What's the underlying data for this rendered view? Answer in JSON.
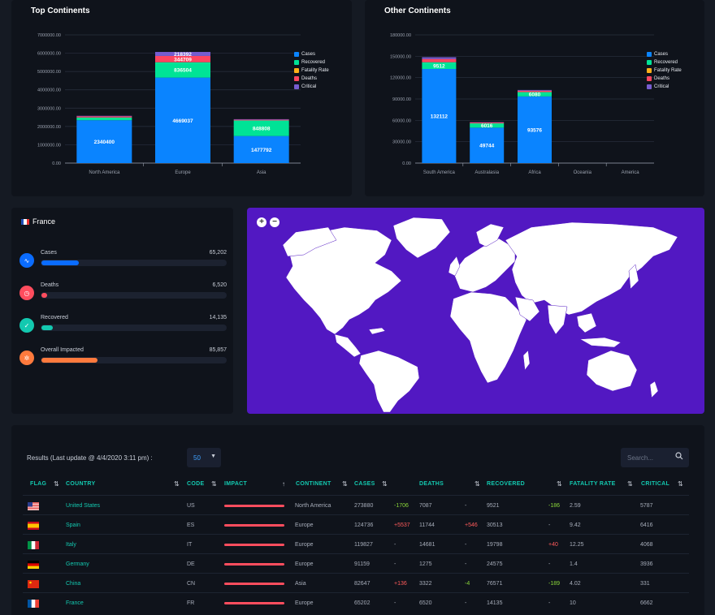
{
  "top_chart": {
    "title": "Top Continents",
    "chart_data": {
      "type": "bar",
      "stacked": true,
      "categories": [
        "North America",
        "Europe",
        "Asia"
      ],
      "series": [
        {
          "name": "Cases",
          "color": "#0a84ff",
          "values": [
            2340400,
            4669037,
            1477792
          ],
          "labels": [
            "2340400",
            "4669037",
            "1477792"
          ]
        },
        {
          "name": "Recovered",
          "color": "#00e396",
          "values": [
            150000,
            836504,
            848808
          ],
          "labels": [
            "",
            "836504",
            "848808"
          ]
        },
        {
          "name": "Fatality Rate",
          "color": "#feb019",
          "values": [
            0,
            0,
            0
          ],
          "labels": [
            "",
            "",
            ""
          ]
        },
        {
          "name": "Deaths",
          "color": "#ff4560",
          "values": [
            60000,
            344709,
            40000
          ],
          "labels": [
            "",
            "344709",
            ""
          ]
        },
        {
          "name": "Critical",
          "color": "#775dd0",
          "values": [
            30000,
            218392,
            30000
          ],
          "labels": [
            "",
            "218392",
            ""
          ]
        }
      ],
      "ylim": [
        0,
        7000000
      ],
      "yticks": [
        "7000000.00",
        "6000000.00",
        "5000000.00",
        "4000000.00",
        "3000000.00",
        "2000000.00",
        "1000000.00",
        "0.00"
      ],
      "grid": true,
      "legend": "top-right"
    }
  },
  "other_chart": {
    "title": "Other Continents",
    "chart_data": {
      "type": "bar",
      "stacked": true,
      "categories": [
        "South America",
        "Australasia",
        "Africa",
        "Oceania",
        "America"
      ],
      "series": [
        {
          "name": "Cases",
          "color": "#0a84ff",
          "values": [
            132112,
            49744,
            93576,
            0,
            0
          ],
          "labels": [
            "132112",
            "49744",
            "93576",
            "",
            ""
          ]
        },
        {
          "name": "Recovered",
          "color": "#00e396",
          "values": [
            9512,
            6016,
            6080,
            0,
            0
          ],
          "labels": [
            "9512",
            "6016",
            "6080",
            "",
            ""
          ]
        },
        {
          "name": "Fatality Rate",
          "color": "#feb019",
          "values": [
            0,
            0,
            0,
            0,
            0
          ],
          "labels": [
            "",
            "",
            "",
            "",
            ""
          ]
        },
        {
          "name": "Deaths",
          "color": "#ff4560",
          "values": [
            4500,
            1200,
            2000,
            0,
            0
          ],
          "labels": [
            "",
            "",
            "",
            "",
            ""
          ]
        },
        {
          "name": "Critical",
          "color": "#775dd0",
          "values": [
            2500,
            500,
            1000,
            0,
            0
          ],
          "labels": [
            "",
            "",
            "",
            "",
            ""
          ]
        }
      ],
      "ylim": [
        0,
        180000
      ],
      "yticks": [
        "180000.00",
        "150000.00",
        "120000.00",
        "90000.00",
        "60000.00",
        "30000.00",
        "0.00"
      ],
      "grid": true,
      "legend": "top-right"
    }
  },
  "country_panel": {
    "name": "France",
    "stats": [
      {
        "label": "Cases",
        "value": "65,202",
        "fraction": 0.2,
        "color": "#0a6cff",
        "icon": "pulse-icon",
        "glyph": "∿"
      },
      {
        "label": "Deaths",
        "value": "6,520",
        "fraction": 0.03,
        "color": "#ff4d5e",
        "icon": "clock-icon",
        "glyph": "◷"
      },
      {
        "label": "Recovered",
        "value": "14,135",
        "fraction": 0.06,
        "color": "#13c9b0",
        "icon": "check-icon",
        "glyph": "✓"
      },
      {
        "label": "Overall Impacted",
        "value": "85,857",
        "fraction": 0.3,
        "color": "#ff7a3d",
        "icon": "virus-icon",
        "glyph": "✲"
      }
    ]
  },
  "map": {
    "zoom_in": "+",
    "zoom_out": "−",
    "background": "#5218c2"
  },
  "table": {
    "results_label": "Results (Last update @ 4/4/2020 3:11 pm) :",
    "per_page": "50",
    "search_placeholder": "Search...",
    "headers": [
      "FLAG",
      "COUNTRY",
      "CODE",
      "IMPACT",
      "CONTINENT",
      "CASES",
      "DEATHS",
      "RECOVERED",
      "FATALITY RATE",
      "CRITICAL"
    ],
    "rows": [
      {
        "flag": "us",
        "country": "United States",
        "code": "US",
        "impact": 1.0,
        "continent": "North America",
        "cases": "273880",
        "cases_delta": "-1706",
        "deaths": "7087",
        "deaths_delta": "-",
        "recovered": "9521",
        "recovered_delta": "-186",
        "fatality": "2.59",
        "critical": "5787"
      },
      {
        "flag": "es",
        "country": "Spain",
        "code": "ES",
        "impact": 1.0,
        "continent": "Europe",
        "cases": "124736",
        "cases_delta": "+5537",
        "deaths": "11744",
        "deaths_delta": "+546",
        "recovered": "30513",
        "recovered_delta": "-",
        "fatality": "9.42",
        "critical": "6416"
      },
      {
        "flag": "it",
        "country": "Italy",
        "code": "IT",
        "impact": 1.0,
        "continent": "Europe",
        "cases": "119827",
        "cases_delta": "-",
        "deaths": "14681",
        "deaths_delta": "-",
        "recovered": "19798",
        "recovered_delta": "+40",
        "fatality": "12.25",
        "critical": "4068"
      },
      {
        "flag": "de",
        "country": "Germany",
        "code": "DE",
        "impact": 1.0,
        "continent": "Europe",
        "cases": "91159",
        "cases_delta": "-",
        "deaths": "1275",
        "deaths_delta": "-",
        "recovered": "24575",
        "recovered_delta": "-",
        "fatality": "1.4",
        "critical": "3936"
      },
      {
        "flag": "cn",
        "country": "China",
        "code": "CN",
        "impact": 1.0,
        "continent": "Asia",
        "cases": "82647",
        "cases_delta": "+136",
        "deaths": "3322",
        "deaths_delta": "-4",
        "recovered": "76571",
        "recovered_delta": "-189",
        "fatality": "4.02",
        "critical": "331"
      },
      {
        "flag": "fr",
        "country": "France",
        "code": "FR",
        "impact": 1.0,
        "continent": "Europe",
        "cases": "65202",
        "cases_delta": "-",
        "deaths": "6520",
        "deaths_delta": "-",
        "recovered": "14135",
        "recovered_delta": "-",
        "fatality": "10",
        "critical": "6662"
      }
    ]
  }
}
